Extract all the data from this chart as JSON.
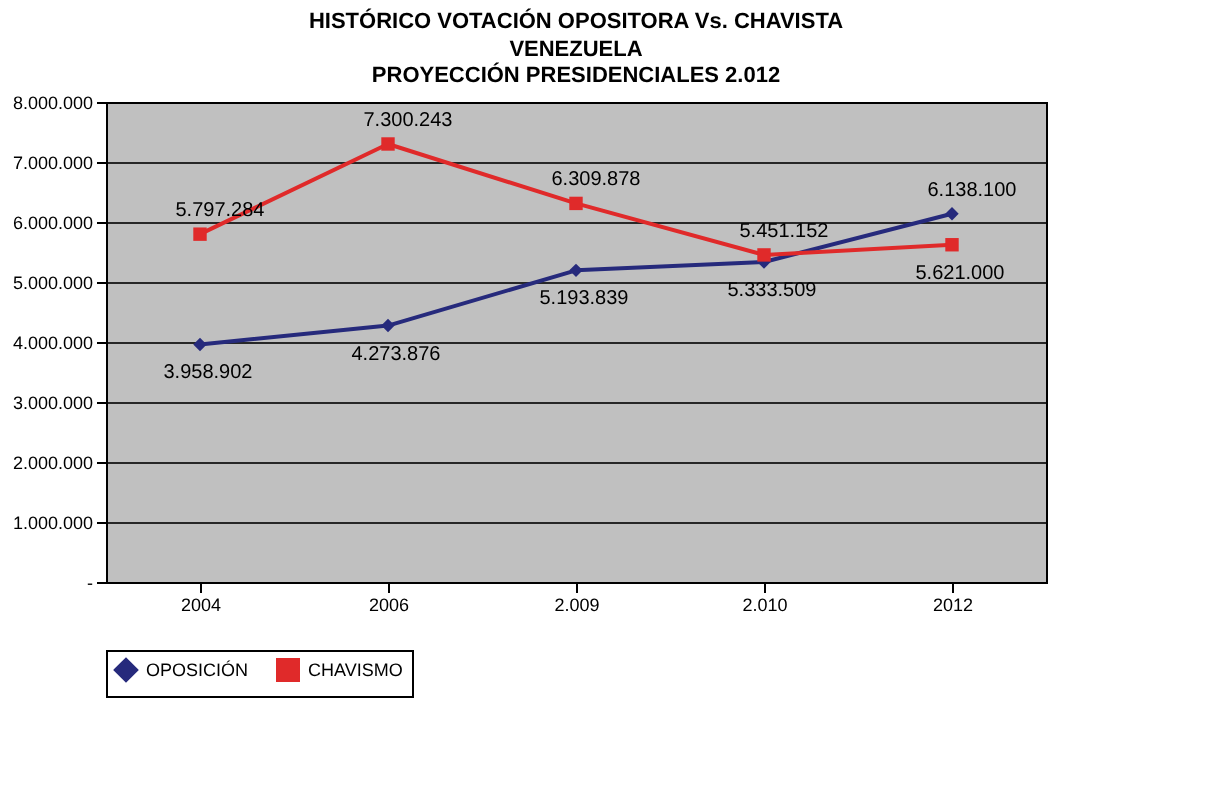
{
  "chart_data": {
    "type": "line",
    "title": "HISTÓRICO VOTACIÓN OPOSITORA Vs. CHAVISTA",
    "subtitle": "VENEZUELA\nPROYECCIÓN PRESIDENCIALES 2.012",
    "categories": [
      "2004",
      "2006",
      "2.009",
      "2.010",
      "2012"
    ],
    "series": [
      {
        "name": "OPOSICIÓN",
        "color": "#262a7c",
        "marker": "diamond",
        "values": [
          3958902,
          4273876,
          5193839,
          5333509,
          6138100
        ],
        "value_labels": [
          "3.958.902",
          "4.273.876",
          "5.193.839",
          "5.333.509",
          "6.138.100"
        ]
      },
      {
        "name": "CHAVISMO",
        "color": "#e02a2a",
        "marker": "square",
        "values": [
          5797284,
          7300243,
          6309878,
          5451152,
          5621000
        ],
        "value_labels": [
          "5.797.284",
          "7.300.243",
          "6.309.878",
          "5.451.152",
          "5.621.000"
        ]
      }
    ],
    "ylim": [
      0,
      8000000
    ],
    "yticks": [
      {
        "value": 0,
        "label": "-"
      },
      {
        "value": 1000000,
        "label": "1.000.000"
      },
      {
        "value": 2000000,
        "label": "2.000.000"
      },
      {
        "value": 3000000,
        "label": "3.000.000"
      },
      {
        "value": 4000000,
        "label": "4.000.000"
      },
      {
        "value": 5000000,
        "label": "5.000.000"
      },
      {
        "value": 6000000,
        "label": "6.000.000"
      },
      {
        "value": 7000000,
        "label": "7.000.000"
      },
      {
        "value": 8000000,
        "label": "8.000.000"
      }
    ],
    "grid": "y",
    "legend": "bottom",
    "line_style": "solid"
  }
}
